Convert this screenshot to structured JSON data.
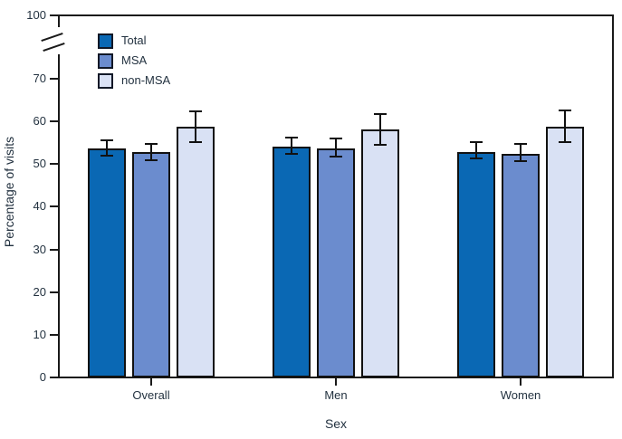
{
  "figure": {
    "y_axis_label": "Percentage of visits",
    "x_axis_label": "Sex"
  },
  "colors": {
    "axis": "#1a1a1a",
    "text": "#233240",
    "total": "#0a68b4",
    "msa": "#6b8cce",
    "non_msa": "#d9e1f4"
  },
  "chart_data": {
    "type": "bar",
    "title": "",
    "xlabel": "Sex",
    "ylabel": "Percentage of visits",
    "categories": [
      "Overall",
      "Men",
      "Women"
    ],
    "series": [
      {
        "name": "Total",
        "color_key": "total",
        "values": [
          53.7,
          54.1,
          52.9
        ],
        "ci_low": [
          52.0,
          52.4,
          51.3
        ],
        "ci_high": [
          55.6,
          56.2,
          55.2
        ]
      },
      {
        "name": "MSA",
        "color_key": "msa",
        "values": [
          52.9,
          53.7,
          52.4
        ],
        "ci_low": [
          50.9,
          51.8,
          50.7
        ],
        "ci_high": [
          54.8,
          56.0,
          54.7
        ]
      },
      {
        "name": "non-MSA",
        "color_key": "non_msa",
        "values": [
          58.8,
          58.1,
          58.8
        ],
        "ci_low": [
          55.1,
          54.5,
          55.2
        ],
        "ci_high": [
          62.4,
          61.7,
          62.6
        ]
      }
    ],
    "y_ticks": [
      0,
      10,
      20,
      30,
      40,
      50,
      60,
      70,
      100
    ],
    "ylim": [
      0,
      70
    ],
    "axis_break": {
      "between": [
        70,
        100
      ]
    },
    "error_bars": true,
    "grid": false,
    "legend_position": "top-left-inside"
  }
}
